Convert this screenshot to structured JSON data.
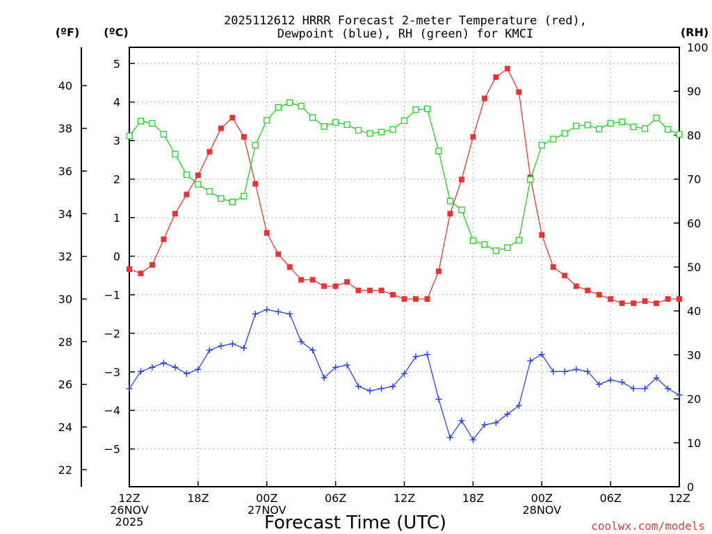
{
  "chart_data": {
    "type": "line",
    "title_line1": "2025112612 HRRR Forecast 2-meter Temperature (red),",
    "title_line2": "Dewpoint (blue), RH (green) for KMCI",
    "xlabel": "Forecast Time (UTC)",
    "credit": "coolwx.com/models",
    "units": {
      "f": "(ºF)",
      "c": "(ºC)",
      "rh": "(RH)"
    },
    "x_hours": [
      0,
      1,
      2,
      3,
      4,
      5,
      6,
      7,
      8,
      9,
      10,
      11,
      12,
      13,
      14,
      15,
      16,
      17,
      18,
      19,
      20,
      21,
      22,
      23,
      24,
      25,
      26,
      27,
      28,
      29,
      30,
      31,
      32,
      33,
      34,
      35,
      36,
      37,
      38,
      39,
      40,
      41,
      42,
      43,
      44,
      45,
      46,
      47,
      48
    ],
    "x_ticks": [
      {
        "hour": 0,
        "line1": "12Z",
        "line2": "26NOV",
        "line3": "2025"
      },
      {
        "hour": 6,
        "line1": "18Z",
        "line2": "",
        "line3": ""
      },
      {
        "hour": 12,
        "line1": "00Z",
        "line2": "27NOV",
        "line3": ""
      },
      {
        "hour": 18,
        "line1": "06Z",
        "line2": "",
        "line3": ""
      },
      {
        "hour": 24,
        "line1": "12Z",
        "line2": "",
        "line3": ""
      },
      {
        "hour": 30,
        "line1": "18Z",
        "line2": "",
        "line3": ""
      },
      {
        "hour": 36,
        "line1": "00Z",
        "line2": "28NOV",
        "line3": ""
      },
      {
        "hour": 42,
        "line1": "06Z",
        "line2": "",
        "line3": ""
      },
      {
        "hour": 48,
        "line1": "12Z",
        "line2": "",
        "line3": ""
      }
    ],
    "f_axis": {
      "ticks": [
        22,
        24,
        26,
        28,
        30,
        32,
        34,
        36,
        38,
        40
      ],
      "range": [
        21.2,
        41.8
      ]
    },
    "c_axis": {
      "ticks": [
        -5,
        -4,
        -3,
        -2,
        -1,
        0,
        1,
        2,
        3,
        4,
        5
      ],
      "range": [
        -5.98,
        5.42
      ]
    },
    "rh_axis": {
      "ticks": [
        0,
        10,
        20,
        30,
        40,
        50,
        60,
        70,
        80,
        90,
        100
      ],
      "range": [
        0,
        100
      ]
    },
    "series": [
      {
        "name": "Temperature",
        "color": "#e83434",
        "marker": "filled-square",
        "axis": "f",
        "values": [
          31.4,
          31.2,
          31.6,
          32.8,
          34.0,
          34.9,
          35.8,
          36.9,
          38.0,
          38.5,
          37.6,
          35.4,
          33.1,
          32.1,
          31.5,
          30.9,
          30.9,
          30.6,
          30.6,
          30.8,
          30.4,
          30.4,
          30.4,
          30.2,
          30.0,
          30.0,
          30.0,
          31.3,
          34.0,
          35.6,
          37.6,
          39.4,
          40.4,
          40.8,
          39.7,
          35.7,
          33.0,
          31.5,
          31.1,
          30.6,
          30.4,
          30.2,
          30.0,
          29.8,
          29.8,
          29.9,
          29.8,
          30.0,
          30.0
        ]
      },
      {
        "name": "Dewpoint",
        "color": "#2b44e0",
        "marker": "plus",
        "axis": "f",
        "values": [
          25.8,
          26.6,
          26.8,
          27.0,
          26.8,
          26.5,
          26.7,
          27.6,
          27.8,
          27.9,
          27.7,
          29.3,
          29.5,
          29.4,
          29.3,
          28.0,
          27.6,
          26.3,
          26.8,
          26.9,
          25.9,
          25.7,
          25.8,
          25.9,
          26.5,
          27.3,
          27.4,
          25.3,
          23.5,
          24.3,
          23.4,
          24.1,
          24.2,
          24.6,
          25.0,
          27.1,
          27.4,
          26.6,
          26.6,
          26.7,
          26.6,
          26.0,
          26.2,
          26.1,
          25.8,
          25.8,
          26.3,
          25.8,
          25.5
        ]
      },
      {
        "name": "RH",
        "color": "#22d022",
        "marker": "open-square",
        "axis": "rh",
        "values": [
          79.8,
          83.2,
          82.7,
          80.2,
          75.7,
          71.0,
          68.8,
          67.2,
          65.6,
          64.8,
          66.1,
          77.7,
          83.4,
          86.3,
          87.4,
          86.6,
          84.0,
          82.0,
          82.9,
          82.4,
          81.1,
          80.4,
          80.7,
          81.3,
          83.3,
          85.8,
          86.0,
          76.4,
          65.0,
          63.0,
          56.0,
          55.1,
          53.7,
          54.4,
          56.1,
          69.9,
          77.7,
          79.1,
          80.4,
          82.1,
          82.3,
          81.4,
          82.7,
          83.0,
          81.9,
          81.5,
          83.9,
          81.3,
          80.2
        ]
      }
    ]
  }
}
